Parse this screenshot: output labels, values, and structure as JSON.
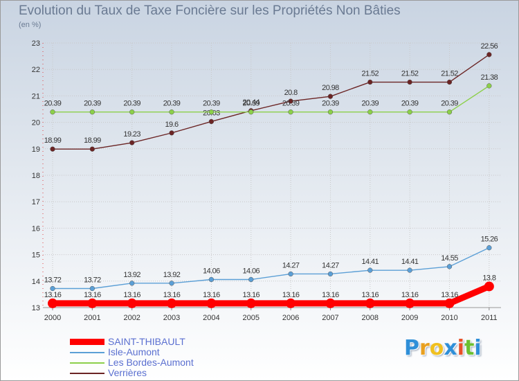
{
  "title": "Evolution du Taux de Taxe Foncière sur les Propriétés Non Bâties",
  "unit_label": "(en %)",
  "logo": {
    "letters": [
      "P",
      "r",
      "o",
      "x",
      "i",
      "t",
      "i"
    ],
    "colors": [
      "#2f8fd8",
      "#e8a020",
      "#f0c020",
      "#2f8fd8",
      "#e85028",
      "#6cc030",
      "#2f8fd8"
    ]
  },
  "chart_data": {
    "type": "line",
    "x": [
      "2000",
      "2001",
      "2002",
      "2003",
      "2004",
      "2005",
      "2006",
      "2007",
      "2008",
      "2009",
      "2010",
      "2011"
    ],
    "ylim": [
      13,
      23
    ],
    "yticks": [
      "13",
      "14",
      "15",
      "16",
      "17",
      "18",
      "19",
      "20",
      "21",
      "22",
      "23"
    ],
    "grid": true,
    "legend_position": "bottom-left",
    "series": [
      {
        "name": "Verrières",
        "color": "#6b2424",
        "values": [
          18.99,
          18.99,
          19.23,
          19.6,
          20.03,
          20.44,
          20.8,
          20.98,
          21.52,
          21.52,
          21.52,
          22.56
        ],
        "labels": [
          "18.99",
          "18.99",
          "19.23",
          "19.6",
          "20.03",
          "20.44",
          "20.8",
          "20.98",
          "21.52",
          "21.52",
          "21.52",
          "22.56"
        ]
      },
      {
        "name": "Les Bordes-Aumont",
        "color": "#8cd04a",
        "values": [
          20.39,
          20.39,
          20.39,
          20.39,
          20.39,
          20.39,
          20.39,
          20.39,
          20.39,
          20.39,
          20.39,
          21.38
        ],
        "labels": [
          "20.39",
          "20.39",
          "20.39",
          "20.39",
          "20.39",
          "20.39",
          "20.39",
          "20.39",
          "20.39",
          "20.39",
          "20.39",
          "21.38"
        ]
      },
      {
        "name": "Isle-Aumont",
        "color": "#5b9fd6",
        "values": [
          13.72,
          13.72,
          13.92,
          13.92,
          14.06,
          14.06,
          14.27,
          14.27,
          14.41,
          14.41,
          14.55,
          15.26
        ],
        "labels": [
          "13.72",
          "13.72",
          "13.92",
          "13.92",
          "14.06",
          "14.06",
          "14.27",
          "14.27",
          "14.41",
          "14.41",
          "14.55",
          "15.26"
        ]
      },
      {
        "name": "SAINT-THIBAULT",
        "color": "#ff0000",
        "values": [
          13.16,
          13.16,
          13.16,
          13.16,
          13.16,
          13.16,
          13.16,
          13.16,
          13.16,
          13.16,
          13.16,
          13.8
        ],
        "labels": [
          "13.16",
          "13.16",
          "13.16",
          "13.16",
          "13.16",
          "13.16",
          "13.16",
          "13.16",
          "13.16",
          "13.16",
          "13.16",
          "13.8"
        ]
      }
    ],
    "legend": [
      {
        "name": "SAINT-THIBAULT",
        "color": "#ff0000"
      },
      {
        "name": "Isle-Aumont",
        "color": "#5b9fd6"
      },
      {
        "name": "Les Bordes-Aumont",
        "color": "#8cd04a"
      },
      {
        "name": "Verrières",
        "color": "#6b2424"
      }
    ]
  }
}
